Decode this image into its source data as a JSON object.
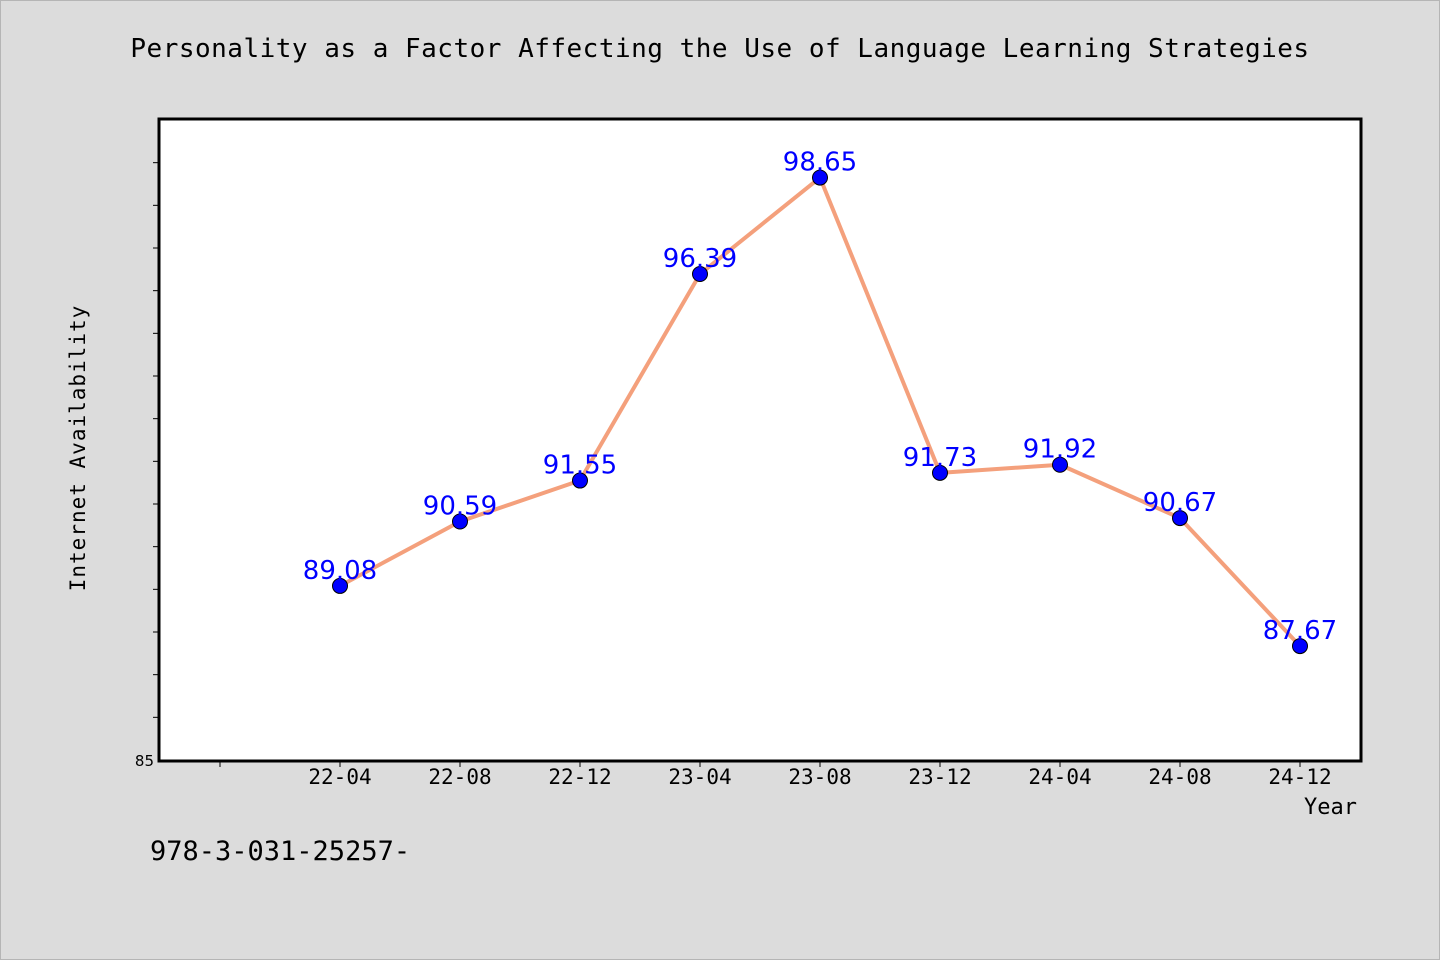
{
  "chart_data": {
    "type": "line",
    "title": "Personality as a Factor Affecting the Use of Language Learning Strategies",
    "xlabel": "Year",
    "ylabel": "Internet Availability",
    "categories": [
      "22-04",
      "22-08",
      "22-12",
      "23-04",
      "23-08",
      "23-12",
      "24-04",
      "24-08",
      "24-12"
    ],
    "series": [
      {
        "values": [
          89.08,
          90.59,
          91.55,
          96.39,
          98.65,
          91.73,
          91.92,
          90.67,
          87.67
        ],
        "labels": [
          "89.08",
          "90.59",
          "91.55",
          "96.39",
          "98.65",
          "91.73",
          "91.92",
          "90.67",
          "87.67"
        ]
      }
    ],
    "ylim": [
      85,
      100
    ],
    "yticks": [
      {
        "value": 85,
        "label": "85"
      }
    ],
    "line_color": "#f4a07c",
    "marker_color": "#0000ff",
    "label_color": "#0000ff",
    "plot_background": "#ffffff",
    "figure_background": "#dcdcdc",
    "grid": false,
    "legend": "none"
  },
  "footer_text": "978-3-031-25257-"
}
